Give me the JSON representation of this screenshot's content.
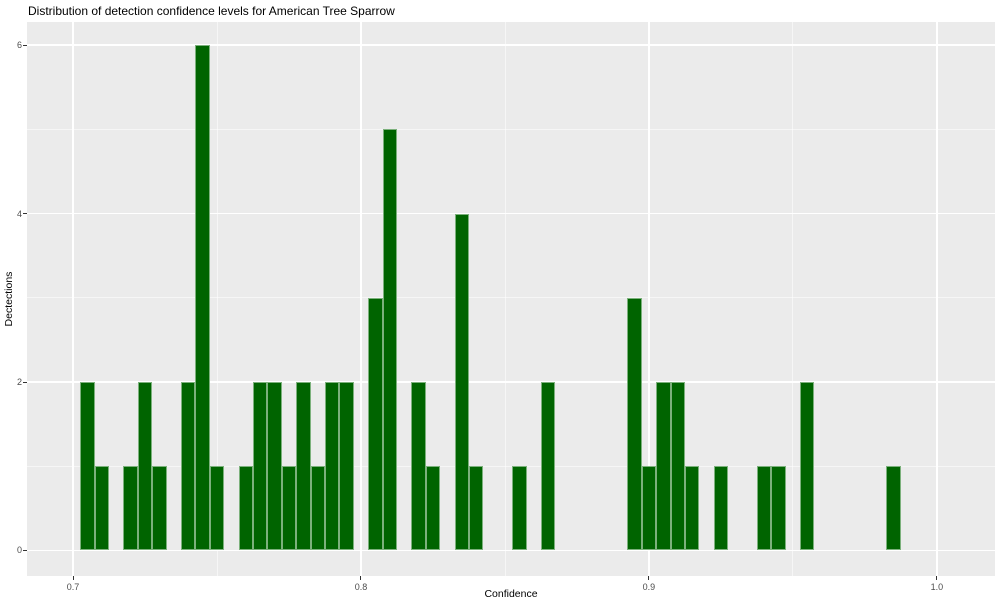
{
  "chart_data": {
    "type": "bar",
    "subtype": "histogram",
    "title": "Distribution of detection confidence levels for American Tree Sparrow",
    "xlabel": "Confidence",
    "ylabel": "Dectections",
    "bin_width": 0.005,
    "bars": [
      {
        "x": 0.705,
        "count": 2
      },
      {
        "x": 0.71,
        "count": 1
      },
      {
        "x": 0.72,
        "count": 1
      },
      {
        "x": 0.725,
        "count": 2
      },
      {
        "x": 0.73,
        "count": 1
      },
      {
        "x": 0.74,
        "count": 2
      },
      {
        "x": 0.745,
        "count": 6
      },
      {
        "x": 0.75,
        "count": 1
      },
      {
        "x": 0.76,
        "count": 1
      },
      {
        "x": 0.765,
        "count": 2
      },
      {
        "x": 0.77,
        "count": 2
      },
      {
        "x": 0.775,
        "count": 1
      },
      {
        "x": 0.78,
        "count": 2
      },
      {
        "x": 0.785,
        "count": 1
      },
      {
        "x": 0.79,
        "count": 2
      },
      {
        "x": 0.795,
        "count": 2
      },
      {
        "x": 0.805,
        "count": 3
      },
      {
        "x": 0.81,
        "count": 5
      },
      {
        "x": 0.82,
        "count": 2
      },
      {
        "x": 0.825,
        "count": 1
      },
      {
        "x": 0.835,
        "count": 4
      },
      {
        "x": 0.84,
        "count": 1
      },
      {
        "x": 0.855,
        "count": 1
      },
      {
        "x": 0.865,
        "count": 2
      },
      {
        "x": 0.895,
        "count": 3
      },
      {
        "x": 0.9,
        "count": 1
      },
      {
        "x": 0.905,
        "count": 2
      },
      {
        "x": 0.91,
        "count": 2
      },
      {
        "x": 0.915,
        "count": 1
      },
      {
        "x": 0.925,
        "count": 1
      },
      {
        "x": 0.94,
        "count": 1
      },
      {
        "x": 0.945,
        "count": 1
      },
      {
        "x": 0.955,
        "count": 2
      },
      {
        "x": 0.985,
        "count": 1
      }
    ],
    "x_ticks": [
      {
        "value": 0.7,
        "label": "0.7"
      },
      {
        "value": 0.8,
        "label": "0.8"
      },
      {
        "value": 0.9,
        "label": "0.9"
      },
      {
        "value": 1.0,
        "label": "1.0"
      }
    ],
    "y_ticks": [
      {
        "value": 0,
        "label": "0"
      },
      {
        "value": 2,
        "label": "2"
      },
      {
        "value": 4,
        "label": "4"
      },
      {
        "value": 6,
        "label": "6"
      }
    ],
    "x_minor_gridlines": [
      0.75,
      0.85,
      0.95
    ],
    "y_minor_gridlines": [
      1,
      3,
      5
    ],
    "xlim": [
      0.684,
      1.0202
    ],
    "ylim": [
      -0.303,
      6.276
    ],
    "grid": true,
    "legend": false,
    "colors": {
      "bar_fill": "#006400",
      "panel_background": "#ebebeb",
      "gridline": "#ffffff",
      "axis_text": "#4d4d4d",
      "title_text": "#000000"
    }
  }
}
